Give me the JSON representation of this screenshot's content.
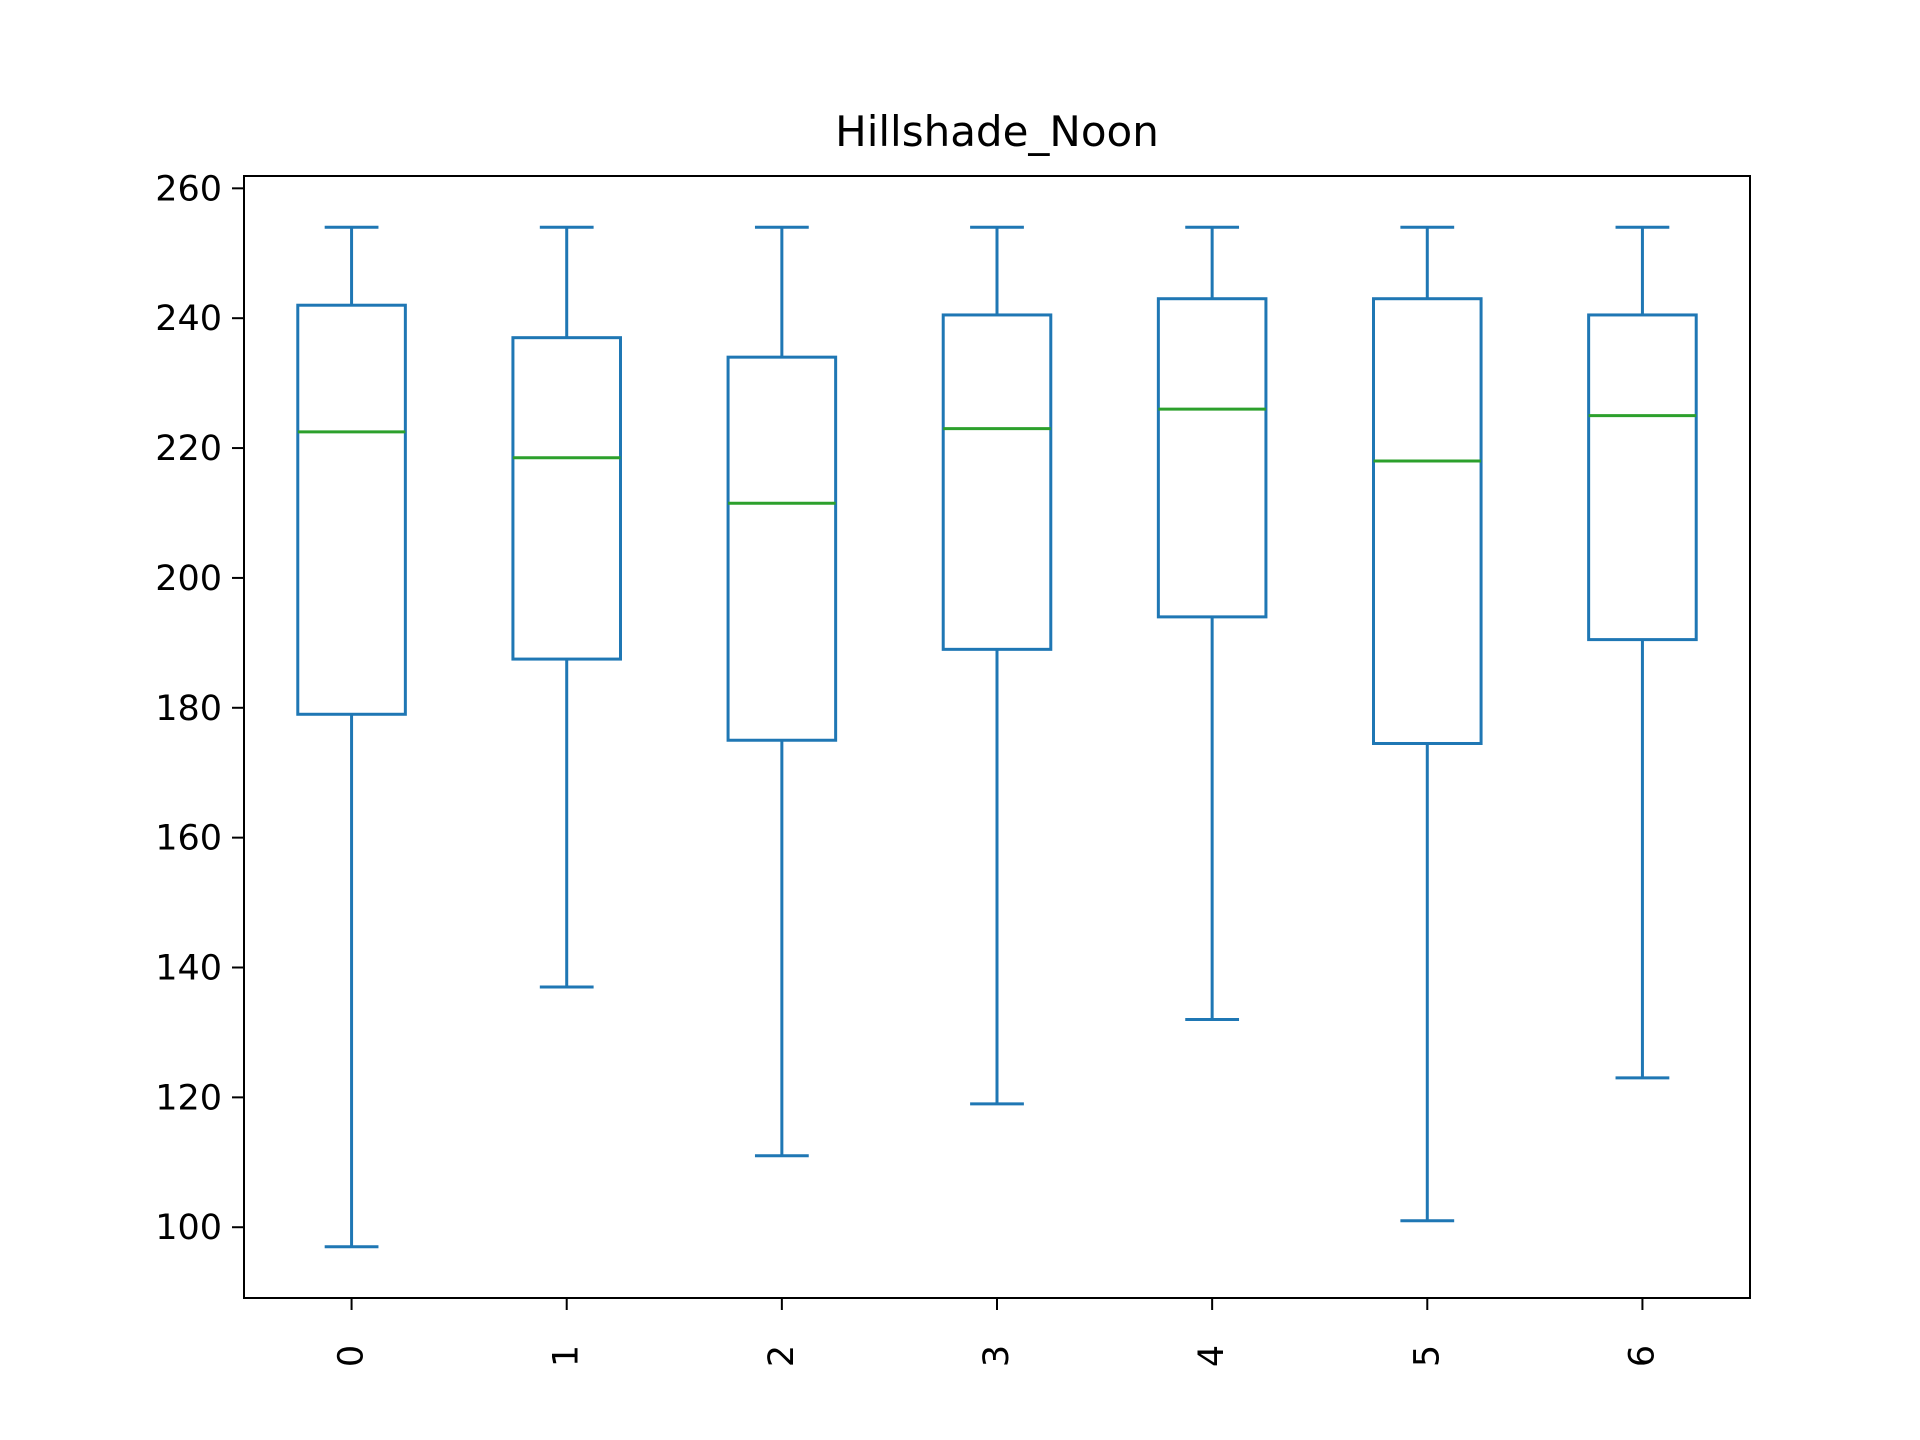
{
  "chart_data": {
    "type": "box",
    "title": "Hillshade_Noon",
    "xlabel": "",
    "ylabel": "",
    "categories": [
      "0",
      "1",
      "2",
      "3",
      "4",
      "5",
      "6"
    ],
    "boxes": [
      {
        "category": "0",
        "whisker_low": 97,
        "q1": 179,
        "median": 222.5,
        "q3": 242,
        "whisker_high": 254
      },
      {
        "category": "1",
        "whisker_low": 137,
        "q1": 187.5,
        "median": 218.5,
        "q3": 237,
        "whisker_high": 254
      },
      {
        "category": "2",
        "whisker_low": 111,
        "q1": 175,
        "median": 211.5,
        "q3": 234,
        "whisker_high": 254
      },
      {
        "category": "3",
        "whisker_low": 119,
        "q1": 189,
        "median": 223,
        "q3": 240.5,
        "whisker_high": 254
      },
      {
        "category": "4",
        "whisker_low": 132,
        "q1": 194,
        "median": 226,
        "q3": 243,
        "whisker_high": 254
      },
      {
        "category": "5",
        "whisker_low": 101,
        "q1": 174.5,
        "median": 218,
        "q3": 243,
        "whisker_high": 254
      },
      {
        "category": "6",
        "whisker_low": 123,
        "q1": 190.5,
        "median": 225,
        "q3": 240.5,
        "whisker_high": 254
      }
    ],
    "yticks": [
      100,
      120,
      140,
      160,
      180,
      200,
      220,
      240,
      260
    ],
    "ylim": [
      89.1,
      261.9
    ],
    "x_tick_rotation": 90,
    "grid": false,
    "colors": {
      "box": "#1f77b4",
      "median": "#2ca02c",
      "axes": "#000000"
    }
  }
}
